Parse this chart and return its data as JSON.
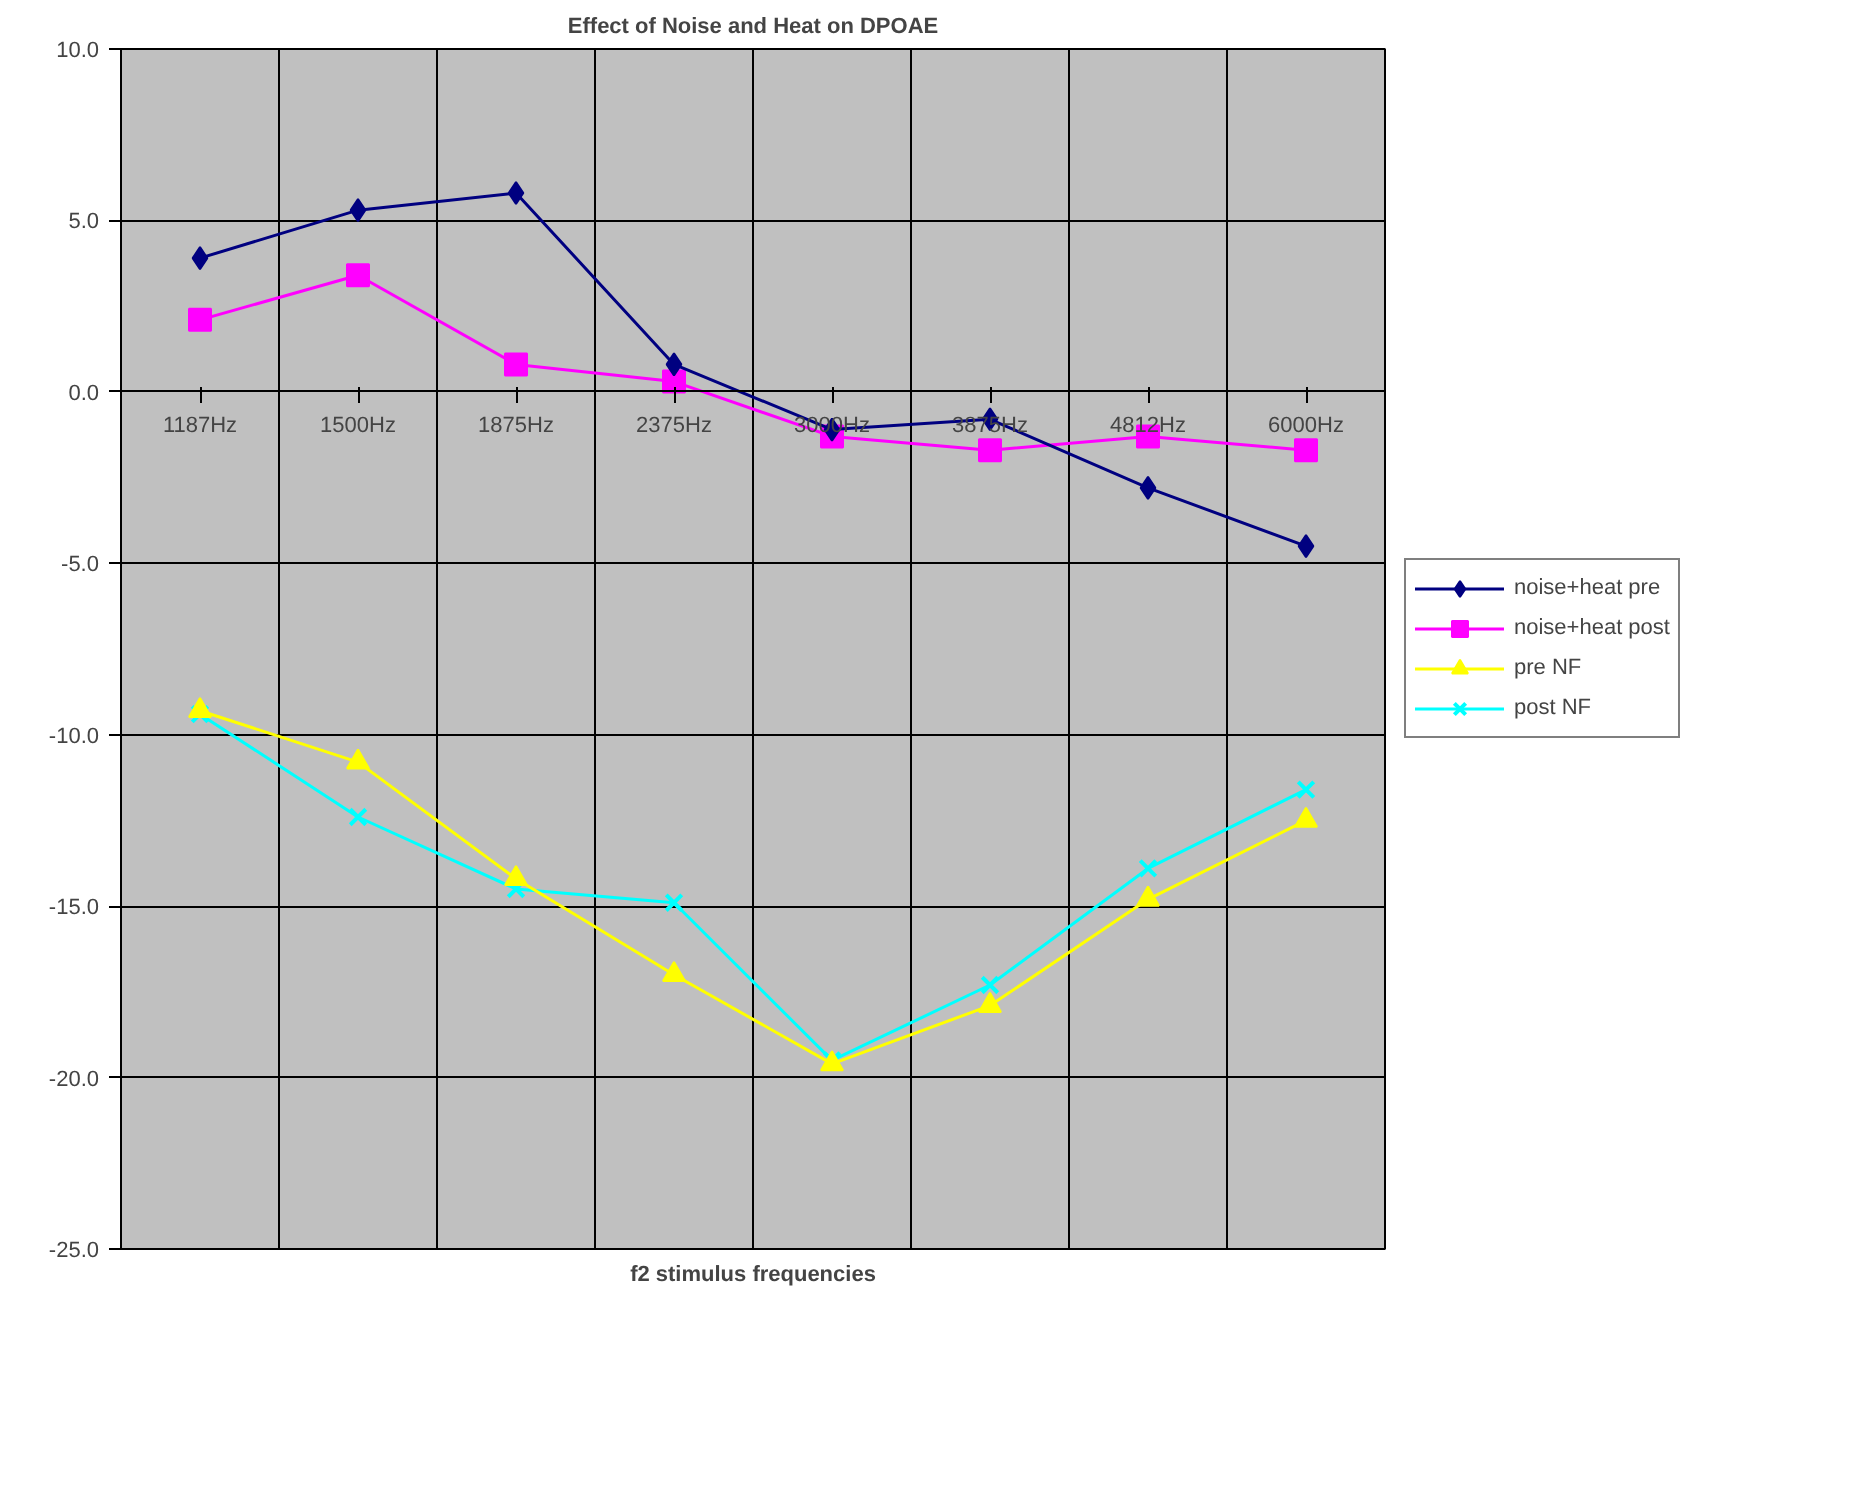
{
  "chart_data": {
    "type": "line",
    "title": "Effect of Noise and Heat on DPOAE",
    "xlabel": "f2 stimulus frequencies",
    "categories": [
      "1187Hz",
      "1500Hz",
      "1875Hz",
      "2375Hz",
      "3000Hz",
      "3875Hz",
      "4812Hz",
      "6000Hz"
    ],
    "ylim": [
      -25,
      10
    ],
    "yticks": [
      {
        "value": -25,
        "label": "-25.0"
      },
      {
        "value": -20,
        "label": "-20.0"
      },
      {
        "value": -15,
        "label": "-15.0"
      },
      {
        "value": -10,
        "label": "-10.0"
      },
      {
        "value": -5,
        "label": "-5.0"
      },
      {
        "value": 0,
        "label": "0.0"
      },
      {
        "value": 5,
        "label": "5.0"
      },
      {
        "value": 10,
        "label": "10.0"
      }
    ],
    "grid": true,
    "legend": "right",
    "series": [
      {
        "name": "noise+heat pre",
        "color": "#000080",
        "marker": "diamond",
        "values": [
          3.9,
          5.3,
          5.8,
          0.8,
          -1.1,
          -0.8,
          -2.8,
          -4.5
        ]
      },
      {
        "name": "noise+heat post",
        "color": "#ff00ff",
        "marker": "square",
        "values": [
          2.1,
          3.4,
          0.8,
          0.3,
          -1.3,
          -1.7,
          -1.3,
          -1.7
        ]
      },
      {
        "name": "pre NF",
        "color": "#ffff00",
        "marker": "triangle",
        "values": [
          -9.3,
          -10.8,
          -14.2,
          -17.0,
          -19.6,
          -17.9,
          -14.8,
          -12.5
        ]
      },
      {
        "name": "post NF",
        "color": "#00ffff",
        "marker": "cross",
        "values": [
          -9.4,
          -12.4,
          -14.5,
          -14.9,
          -19.5,
          -17.3,
          -13.9,
          -11.6
        ]
      }
    ]
  }
}
